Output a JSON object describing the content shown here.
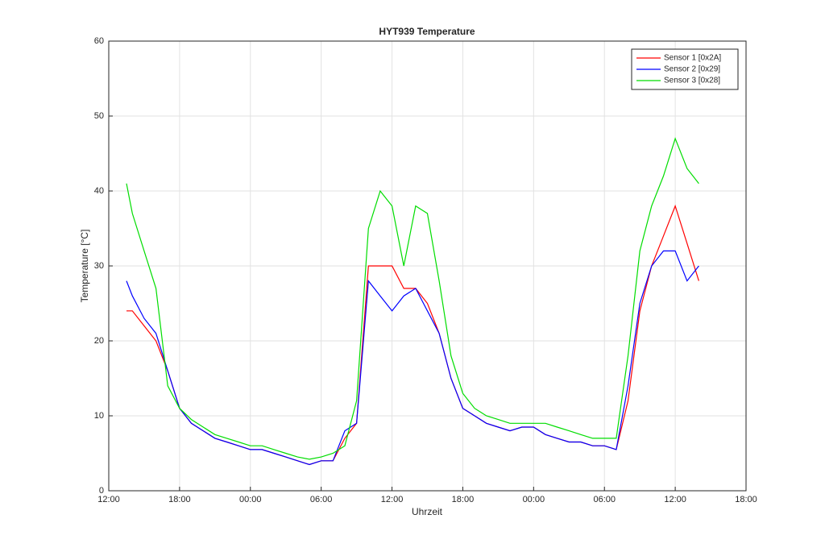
{
  "chart_data": {
    "type": "line",
    "title": "HYT939 Temperature",
    "xlabel": "Uhrzeit",
    "ylabel": "Temperature [°C]",
    "x": [
      13.5,
      14,
      15,
      16,
      17,
      18,
      19,
      20,
      21,
      22,
      23,
      24,
      25,
      26,
      27,
      28,
      29,
      30,
      31,
      32,
      33,
      34,
      35,
      36,
      37,
      38,
      39,
      40,
      41,
      42,
      43,
      44,
      45,
      46,
      47,
      48,
      49,
      50,
      51,
      52,
      53,
      54,
      55,
      56,
      57,
      58,
      59,
      60,
      61,
      62
    ],
    "series": [
      {
        "name": "Sensor 1 [0x2A]",
        "color": "#ff0000",
        "values": [
          24,
          24,
          22,
          20,
          16,
          11,
          9,
          8,
          7,
          6.5,
          6,
          5.5,
          5.5,
          5,
          4.5,
          4,
          3.5,
          4,
          4,
          7,
          9,
          30,
          30,
          30,
          27,
          27,
          25,
          21,
          15,
          11,
          10,
          9,
          8.5,
          8,
          8.5,
          8.5,
          7.5,
          7,
          6.5,
          6.5,
          6,
          6,
          5.5,
          12,
          24,
          30,
          34,
          38,
          33,
          28
        ]
      },
      {
        "name": "Sensor 2 [0x29]",
        "color": "#0000ff",
        "values": [
          28,
          26,
          23,
          21,
          16,
          11,
          9,
          8,
          7,
          6.5,
          6,
          5.5,
          5.5,
          5,
          4.5,
          4,
          3.5,
          4,
          4,
          8,
          9,
          28,
          26,
          24,
          26,
          27,
          24,
          21,
          15,
          11,
          10,
          9,
          8.5,
          8,
          8.5,
          8.5,
          7.5,
          7,
          6.5,
          6.5,
          6,
          6,
          5.5,
          14,
          25,
          30,
          32,
          32,
          28,
          30
        ]
      },
      {
        "name": "Sensor 3 [0x28]",
        "color": "#00dd00",
        "values": [
          41,
          37,
          32,
          27,
          14,
          11,
          9.5,
          8.5,
          7.5,
          7,
          6.5,
          6,
          6,
          5.5,
          5,
          4.5,
          4.2,
          4.5,
          5,
          6,
          12,
          35,
          40,
          38,
          30,
          38,
          37,
          28,
          18,
          13,
          11,
          10,
          9.5,
          9,
          9,
          9,
          9,
          8.5,
          8,
          7.5,
          7,
          7,
          7,
          18,
          32,
          38,
          42,
          47,
          43,
          41
        ]
      }
    ],
    "xlim": [
      12,
      66
    ],
    "xticks": [
      {
        "value": 12,
        "label": "12:00"
      },
      {
        "value": 18,
        "label": "18:00"
      },
      {
        "value": 24,
        "label": "00:00"
      },
      {
        "value": 30,
        "label": "06:00"
      },
      {
        "value": 36,
        "label": "12:00"
      },
      {
        "value": 42,
        "label": "18:00"
      },
      {
        "value": 48,
        "label": "00:00"
      },
      {
        "value": 54,
        "label": "06:00"
      },
      {
        "value": 60,
        "label": "12:00"
      },
      {
        "value": 66,
        "label": "18:00"
      }
    ],
    "ylim": [
      0,
      60
    ],
    "yticks": [
      0,
      10,
      20,
      30,
      40,
      50,
      60
    ],
    "grid": true,
    "legend": "northeast"
  }
}
